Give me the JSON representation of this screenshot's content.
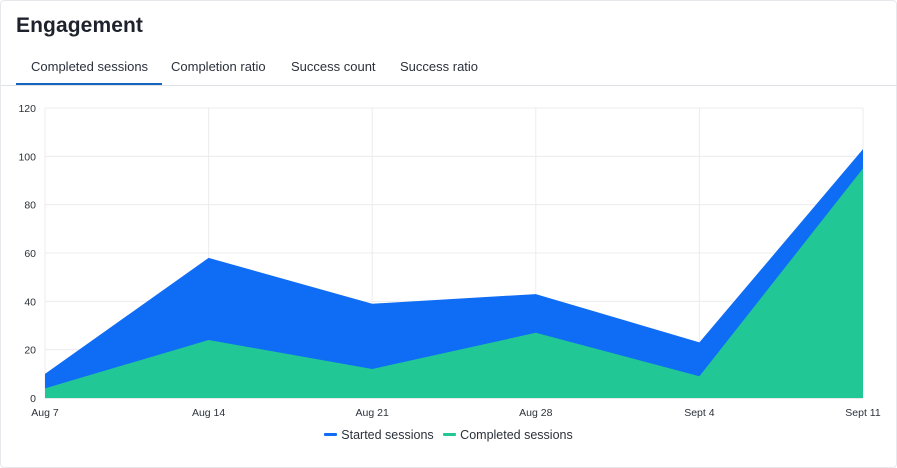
{
  "header": {
    "title": "Engagement"
  },
  "tabs": [
    {
      "label": "Completed sessions",
      "active": true
    },
    {
      "label": "Completion ratio",
      "active": false
    },
    {
      "label": "Success count",
      "active": false
    },
    {
      "label": "Success ratio",
      "active": false
    }
  ],
  "colors": {
    "accent": "#1565c0",
    "started": "#0f6cf5",
    "completed": "#21c795",
    "grid": "#ececef"
  },
  "chart_data": {
    "type": "area",
    "categories": [
      "Aug 7",
      "Aug 14",
      "Aug 21",
      "Aug 28",
      "Sept 4",
      "Sept 11"
    ],
    "series": [
      {
        "name": "Started sessions",
        "values": [
          10,
          58,
          39,
          43,
          23,
          103
        ]
      },
      {
        "name": "Completed sessions",
        "values": [
          4,
          24,
          12,
          27,
          9,
          95
        ]
      }
    ],
    "yticks": [
      "0",
      "20",
      "40",
      "60",
      "80",
      "100",
      "120"
    ],
    "ylim": [
      0,
      120
    ],
    "grid": true,
    "legend": "bottom-center"
  },
  "legend": {
    "started_label": "Started sessions",
    "completed_label": "Completed sessions"
  }
}
